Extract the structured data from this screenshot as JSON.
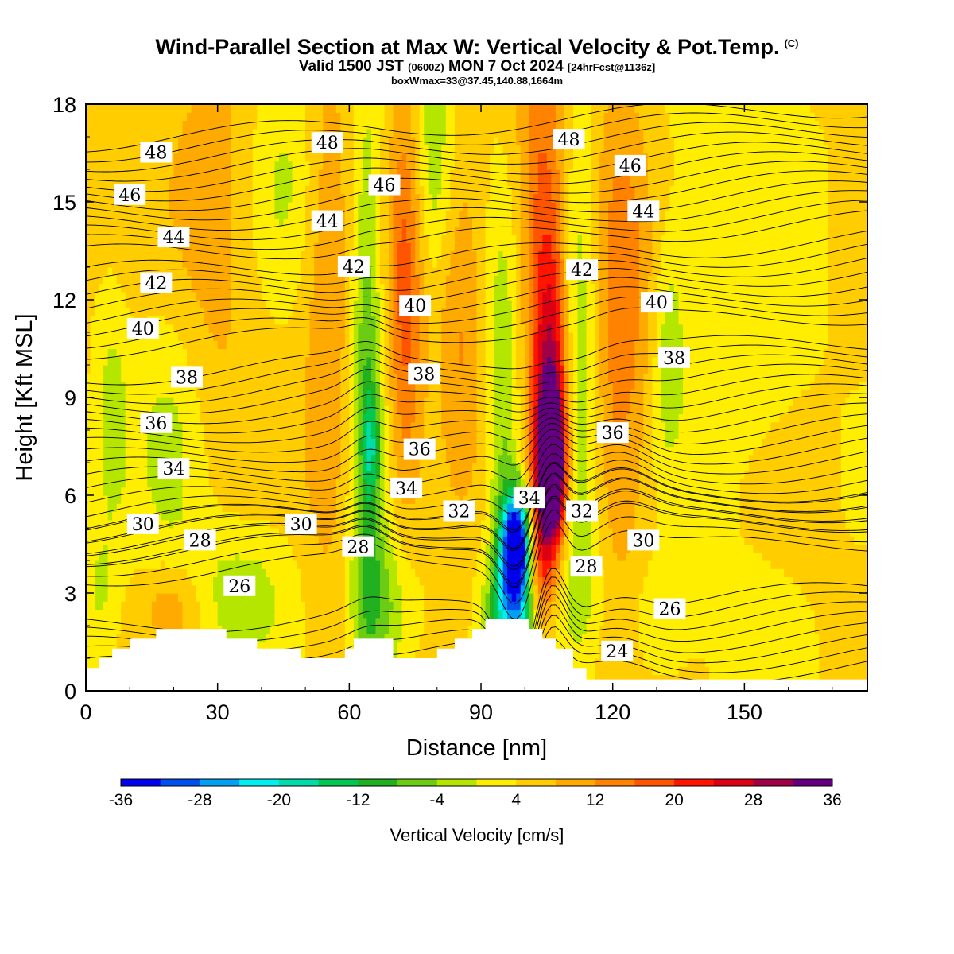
{
  "header": {
    "title": "Wind-Parallel Section at Max W: Vertical Velocity & Pot.Temp.",
    "copyright": "(C)",
    "valid_prefix": "Valid 1500 JST",
    "valid_utc": "(0600Z)",
    "valid_date": "MON 7 Oct 2024",
    "forecast": "[24hrFcst@1136z]",
    "boxinfo": "boxWmax=33@37.45,140.88,1664m"
  },
  "chart_data": {
    "type": "heatmap",
    "xlabel": "Distance [nm]",
    "ylabel": "Height [Kft MSL]",
    "xlim": [
      0,
      178
    ],
    "ylim": [
      0,
      18
    ],
    "xticks": [
      0,
      30,
      60,
      90,
      120,
      150
    ],
    "yticks": [
      0,
      3,
      6,
      9,
      12,
      15,
      18
    ],
    "colorbar": {
      "label": "Vertical Velocity [cm/s]",
      "levels": [
        -36,
        -32,
        -28,
        -24,
        -20,
        -16,
        -12,
        -8,
        -4,
        0,
        4,
        8,
        12,
        16,
        20,
        24,
        28,
        32,
        36
      ],
      "tick_labels": [
        -36,
        -28,
        -20,
        -12,
        -4,
        4,
        12,
        20,
        28,
        36
      ],
      "colors": [
        "#0000ee",
        "#0050f0",
        "#00a0f5",
        "#00f0f0",
        "#00dcaa",
        "#00c850",
        "#20b020",
        "#6ccc14",
        "#b4e600",
        "#ffee00",
        "#ffcd00",
        "#ffaa00",
        "#ff8200",
        "#ff5500",
        "#ff1400",
        "#dc0014",
        "#a00046",
        "#640080"
      ]
    },
    "terrain_kft": [
      [
        0,
        0.7
      ],
      [
        3,
        0.7
      ],
      [
        3,
        1.0
      ],
      [
        6,
        1.0
      ],
      [
        6,
        1.3
      ],
      [
        10,
        1.3
      ],
      [
        10,
        1.6
      ],
      [
        16,
        1.6
      ],
      [
        16,
        1.9
      ],
      [
        32,
        1.9
      ],
      [
        32,
        1.6
      ],
      [
        39,
        1.6
      ],
      [
        39,
        1.3
      ],
      [
        49,
        1.3
      ],
      [
        49,
        1.0
      ],
      [
        59,
        1.0
      ],
      [
        59,
        1.3
      ],
      [
        61,
        1.3
      ],
      [
        61,
        1.6
      ],
      [
        70,
        1.6
      ],
      [
        70,
        1.0
      ],
      [
        80,
        1.0
      ],
      [
        80,
        1.3
      ],
      [
        84,
        1.3
      ],
      [
        84,
        1.6
      ],
      [
        88,
        1.6
      ],
      [
        88,
        1.9
      ],
      [
        91,
        1.9
      ],
      [
        91,
        2.2
      ],
      [
        101,
        2.2
      ],
      [
        101,
        1.9
      ],
      [
        104,
        1.9
      ],
      [
        104,
        1.6
      ],
      [
        107,
        1.6
      ],
      [
        107,
        1.3
      ],
      [
        111,
        1.3
      ],
      [
        111,
        0.7
      ],
      [
        114,
        0.7
      ],
      [
        114,
        0.35
      ],
      [
        178,
        0.35
      ]
    ],
    "w_features": [
      {
        "x": 98,
        "z": 4.6,
        "sx": 2.2,
        "sz": 1.1,
        "w": -42
      },
      {
        "x": 97.5,
        "z": 2.5,
        "sx": 3.8,
        "sz": 1.3,
        "w": -24
      },
      {
        "x": 95,
        "z": 8.0,
        "sx": 2.6,
        "sz": 4.2,
        "w": -10
      },
      {
        "x": 106,
        "z": 6.8,
        "sx": 2.3,
        "sz": 1.6,
        "w": 40
      },
      {
        "x": 106,
        "z": 9.5,
        "sx": 3.0,
        "sz": 3.0,
        "w": 20
      },
      {
        "x": 104,
        "z": 15,
        "sx": 4.0,
        "sz": 4.0,
        "w": 12
      },
      {
        "x": 103.5,
        "z": 3.5,
        "sx": 2.0,
        "sz": 1.5,
        "w": 14
      },
      {
        "x": 112,
        "z": 10,
        "sx": 3.0,
        "sz": 5.0,
        "w": -10
      },
      {
        "x": 113,
        "z": 3.2,
        "sx": 4.0,
        "sz": 1.6,
        "w": -4
      },
      {
        "x": 122,
        "z": 11,
        "sx": 4.5,
        "sz": 6.0,
        "w": 10
      },
      {
        "x": 133,
        "z": 10.5,
        "sx": 2.5,
        "sz": 2.5,
        "w": -7
      },
      {
        "x": 64,
        "z": 9,
        "sx": 2.5,
        "sz": 6.0,
        "w": -13
      },
      {
        "x": 65,
        "z": 7.5,
        "sx": 1.4,
        "sz": 1.2,
        "w": -10
      },
      {
        "x": 73,
        "z": 12,
        "sx": 3.0,
        "sz": 5.0,
        "w": 13
      },
      {
        "x": 79,
        "z": 16,
        "sx": 3.5,
        "sz": 3.0,
        "w": -9
      },
      {
        "x": 68,
        "z": 2.5,
        "sx": 5.0,
        "sz": 1.8,
        "w": -10
      },
      {
        "x": 35,
        "z": 3.0,
        "sx": 8.0,
        "sz": 1.5,
        "w": -7
      },
      {
        "x": 20,
        "z": 2.6,
        "sx": 5.0,
        "sz": 1.0,
        "w": 7
      },
      {
        "x": 20,
        "z": 8.0,
        "sx": 6.0,
        "sz": 3.5,
        "w": -6
      },
      {
        "x": 55,
        "z": 12,
        "sx": 4.0,
        "sz": 7.0,
        "w": 7
      },
      {
        "x": 85,
        "z": 11,
        "sx": 4.0,
        "sz": 4.0,
        "w": 8
      },
      {
        "x": 28,
        "z": 14,
        "sx": 8.0,
        "sz": 5.0,
        "w": 6
      },
      {
        "x": 6,
        "z": 8.5,
        "sx": 2.5,
        "sz": 2.5,
        "w": -6
      },
      {
        "x": 150,
        "z": 13,
        "sx": 10.0,
        "sz": 6.0,
        "w": -3
      },
      {
        "x": 128,
        "z": 2.0,
        "sx": 6.0,
        "sz": 1.5,
        "w": -4
      },
      {
        "x": 45,
        "z": 16,
        "sx": 6.0,
        "sz": 2.5,
        "w": -5
      },
      {
        "x": 3,
        "z": 3.0,
        "sx": 3.0,
        "sz": 1.5,
        "w": -5
      }
    ],
    "theta_contours": [
      {
        "level": 24,
        "label": "24",
        "base_kft": 0.2,
        "label_x": 121,
        "label_z": 1.2
      },
      {
        "level": 26,
        "label": "26",
        "base_kft": 1.5,
        "label_x": 35,
        "label_z": 3.2
      },
      {
        "level": 26,
        "label": "26",
        "base_kft": 1.5,
        "label_x": 133,
        "label_z": 2.5
      },
      {
        "level": 28,
        "label": "28",
        "base_kft": 4.0,
        "label_x": 26,
        "label_z": 4.6
      },
      {
        "level": 28,
        "label": "28",
        "base_kft": 4.0,
        "label_x": 62,
        "label_z": 4.4
      },
      {
        "level": 28,
        "label": "28",
        "base_kft": 4.0,
        "label_x": 114,
        "label_z": 3.8
      },
      {
        "level": 30,
        "label": "30",
        "base_kft": 4.7,
        "label_x": 13,
        "label_z": 5.1
      },
      {
        "level": 30,
        "label": "30",
        "base_kft": 4.7,
        "label_x": 49,
        "label_z": 5.1
      },
      {
        "level": 30,
        "label": "30",
        "base_kft": 4.7,
        "label_x": 127,
        "label_z": 4.6
      },
      {
        "level": 32,
        "label": "32",
        "base_kft": 5.3,
        "label_x": 85,
        "label_z": 5.5
      },
      {
        "level": 32,
        "label": "32",
        "base_kft": 5.3,
        "label_x": 113,
        "label_z": 5.5
      },
      {
        "level": 34,
        "label": "34",
        "base_kft": 6.6,
        "label_x": 20,
        "label_z": 6.8
      },
      {
        "level": 34,
        "label": "34",
        "base_kft": 6.6,
        "label_x": 73,
        "label_z": 6.2
      },
      {
        "level": 34,
        "label": "34",
        "base_kft": 6.6,
        "label_x": 101,
        "label_z": 5.9
      },
      {
        "level": 36,
        "label": "36",
        "base_kft": 7.9,
        "label_x": 16,
        "label_z": 8.2
      },
      {
        "level": 36,
        "label": "36",
        "base_kft": 7.9,
        "label_x": 76,
        "label_z": 7.4
      },
      {
        "level": 36,
        "label": "36",
        "base_kft": 7.9,
        "label_x": 120,
        "label_z": 7.9
      },
      {
        "level": 38,
        "label": "38",
        "base_kft": 9.2,
        "label_x": 23,
        "label_z": 9.6
      },
      {
        "level": 38,
        "label": "38",
        "base_kft": 9.2,
        "label_x": 77,
        "label_z": 9.7
      },
      {
        "level": 38,
        "label": "38",
        "base_kft": 9.2,
        "label_x": 134,
        "label_z": 10.2
      },
      {
        "level": 40,
        "label": "40",
        "base_kft": 11.0,
        "label_x": 13,
        "label_z": 11.1
      },
      {
        "level": 40,
        "label": "40",
        "base_kft": 11.0,
        "label_x": 75,
        "label_z": 11.8
      },
      {
        "level": 40,
        "label": "40",
        "base_kft": 11.0,
        "label_x": 130,
        "label_z": 11.9
      },
      {
        "level": 42,
        "label": "42",
        "base_kft": 12.3,
        "label_x": 16,
        "label_z": 12.5
      },
      {
        "level": 42,
        "label": "42",
        "base_kft": 12.3,
        "label_x": 61,
        "label_z": 13.0
      },
      {
        "level": 42,
        "label": "42",
        "base_kft": 12.3,
        "label_x": 113,
        "label_z": 12.9
      },
      {
        "level": 44,
        "label": "44",
        "base_kft": 13.8,
        "label_x": 20,
        "label_z": 13.9
      },
      {
        "level": 44,
        "label": "44",
        "base_kft": 13.8,
        "label_x": 55,
        "label_z": 14.4
      },
      {
        "level": 44,
        "label": "44",
        "base_kft": 13.8,
        "label_x": 127,
        "label_z": 14.7
      },
      {
        "level": 46,
        "label": "46",
        "base_kft": 15.1,
        "label_x": 10,
        "label_z": 15.2
      },
      {
        "level": 46,
        "label": "46",
        "base_kft": 15.1,
        "label_x": 68,
        "label_z": 15.5
      },
      {
        "level": 46,
        "label": "46",
        "base_kft": 15.1,
        "label_x": 124,
        "label_z": 16.1
      },
      {
        "level": 48,
        "label": "48",
        "base_kft": 16.4,
        "label_x": 16,
        "label_z": 16.5
      },
      {
        "level": 48,
        "label": "48",
        "base_kft": 16.4,
        "label_x": 55,
        "label_z": 16.8
      },
      {
        "level": 48,
        "label": "48",
        "base_kft": 16.4,
        "label_x": 110,
        "label_z": 16.9
      }
    ]
  }
}
